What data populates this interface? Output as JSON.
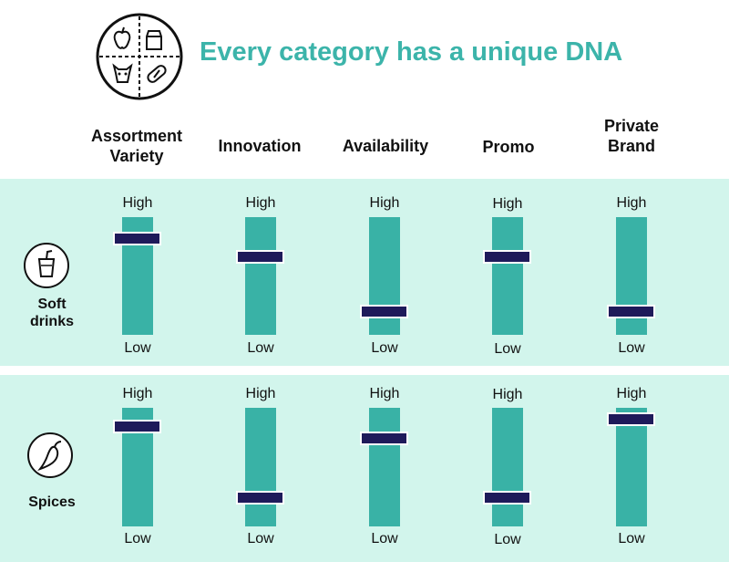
{
  "title": "Every category has a unique DNA",
  "icons": {
    "header": "grocery-categories-icon",
    "rows": [
      "soft-drink-cup-icon",
      "chili-pepper-icon"
    ]
  },
  "colors": {
    "title": "#3cb4aa",
    "band": "#d2f5ec",
    "bar": "#39b2a6",
    "marker": "#1e1a5a"
  },
  "chart_data": {
    "type": "bar",
    "title": "Every category has a unique DNA",
    "scale": {
      "high_label": "High",
      "low_label": "Low",
      "min": 0,
      "max": 1
    },
    "categories": [
      "Assortment\nVariety",
      "Innovation",
      "Availability",
      "Promo",
      "Private\nBrand"
    ],
    "series": [
      {
        "name": "Soft\ndrinks",
        "values": [
          0.82,
          0.67,
          0.2,
          0.67,
          0.2
        ]
      },
      {
        "name": "Spices",
        "values": [
          0.85,
          0.25,
          0.75,
          0.25,
          0.91
        ]
      }
    ]
  }
}
